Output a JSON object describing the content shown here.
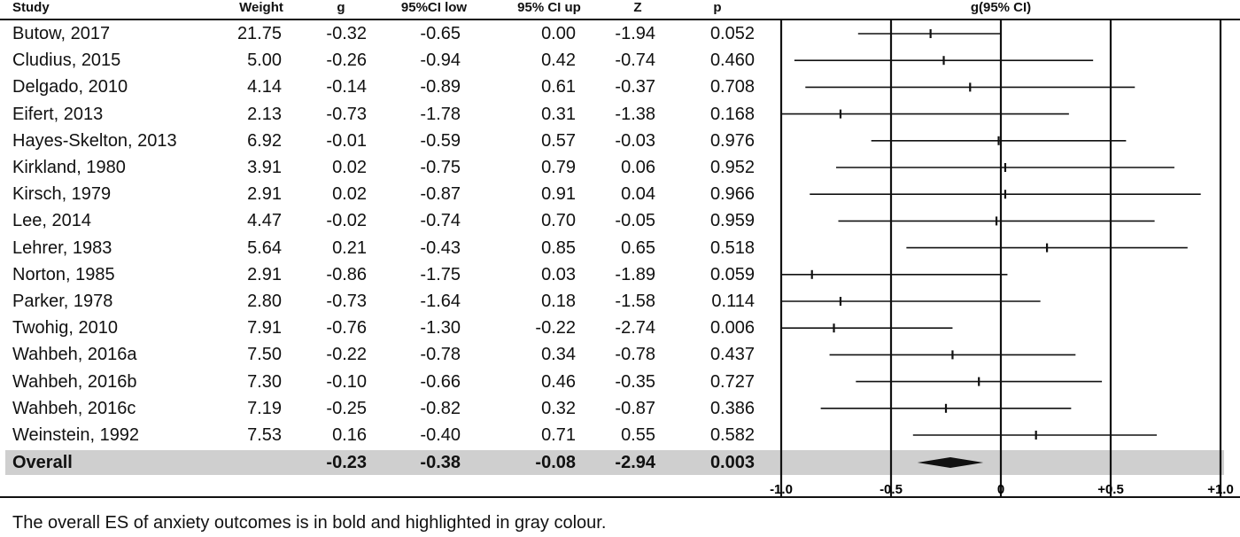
{
  "headers": {
    "study": "Study",
    "weight": "Weight",
    "g": "g",
    "ci_low": "95%CI low",
    "ci_up": "95% CI up",
    "z": "Z",
    "p": "p",
    "plot": "g(95% CI)"
  },
  "rows": [
    {
      "study": "Butow, 2017",
      "weight": "21.75",
      "g": "-0.32",
      "ci_low": "-0.65",
      "ci_up": "0.00",
      "z": "-1.94",
      "p": "0.052"
    },
    {
      "study": "Cludius, 2015",
      "weight": "5.00",
      "g": "-0.26",
      "ci_low": "-0.94",
      "ci_up": "0.42",
      "z": "-0.74",
      "p": "0.460"
    },
    {
      "study": "Delgado, 2010",
      "weight": "4.14",
      "g": "-0.14",
      "ci_low": "-0.89",
      "ci_up": "0.61",
      "z": "-0.37",
      "p": "0.708"
    },
    {
      "study": "Eifert, 2013",
      "weight": "2.13",
      "g": "-0.73",
      "ci_low": "-1.78",
      "ci_up": "0.31",
      "z": "-1.38",
      "p": "0.168"
    },
    {
      "study": "Hayes-Skelton, 2013",
      "weight": "6.92",
      "g": "-0.01",
      "ci_low": "-0.59",
      "ci_up": "0.57",
      "z": "-0.03",
      "p": "0.976"
    },
    {
      "study": "Kirkland, 1980",
      "weight": "3.91",
      "g": "0.02",
      "ci_low": "-0.75",
      "ci_up": "0.79",
      "z": "0.06",
      "p": "0.952"
    },
    {
      "study": "Kirsch, 1979",
      "weight": "2.91",
      "g": "0.02",
      "ci_low": "-0.87",
      "ci_up": "0.91",
      "z": "0.04",
      "p": "0.966"
    },
    {
      "study": "Lee, 2014",
      "weight": "4.47",
      "g": "-0.02",
      "ci_low": "-0.74",
      "ci_up": "0.70",
      "z": "-0.05",
      "p": "0.959"
    },
    {
      "study": "Lehrer, 1983",
      "weight": "5.64",
      "g": "0.21",
      "ci_low": "-0.43",
      "ci_up": "0.85",
      "z": "0.65",
      "p": "0.518"
    },
    {
      "study": "Norton, 1985",
      "weight": "2.91",
      "g": "-0.86",
      "ci_low": "-1.75",
      "ci_up": "0.03",
      "z": "-1.89",
      "p": "0.059"
    },
    {
      "study": "Parker, 1978",
      "weight": "2.80",
      "g": "-0.73",
      "ci_low": "-1.64",
      "ci_up": "0.18",
      "z": "-1.58",
      "p": "0.114"
    },
    {
      "study": "Twohig, 2010",
      "weight": "7.91",
      "g": "-0.76",
      "ci_low": "-1.30",
      "ci_up": "-0.22",
      "z": "-2.74",
      "p": "0.006"
    },
    {
      "study": "Wahbeh, 2016a",
      "weight": "7.50",
      "g": "-0.22",
      "ci_low": "-0.78",
      "ci_up": "0.34",
      "z": "-0.78",
      "p": "0.437"
    },
    {
      "study": "Wahbeh, 2016b",
      "weight": "7.30",
      "g": "-0.10",
      "ci_low": "-0.66",
      "ci_up": "0.46",
      "z": "-0.35",
      "p": "0.727"
    },
    {
      "study": "Wahbeh, 2016c",
      "weight": "7.19",
      "g": "-0.25",
      "ci_low": "-0.82",
      "ci_up": "0.32",
      "z": "-0.87",
      "p": "0.386"
    },
    {
      "study": "Weinstein, 1992",
      "weight": "7.53",
      "g": "0.16",
      "ci_low": "-0.40",
      "ci_up": "0.71",
      "z": "0.55",
      "p": "0.582"
    }
  ],
  "overall": {
    "study": "Overall",
    "weight": "",
    "g": "-0.23",
    "ci_low": "-0.38",
    "ci_up": "-0.08",
    "z": "-2.94",
    "p": "0.003"
  },
  "caption": "The overall ES of anxiety outcomes is in bold and highlighted in gray colour.",
  "colors": {
    "overall_band": "#cfcfcf",
    "ink": "#111111"
  },
  "chart_data": {
    "type": "forest",
    "title": "g(95% CI)",
    "xlim": [
      -1.0,
      1.0
    ],
    "x_ticks": [
      -1.0,
      -0.5,
      0,
      0.5,
      1.0
    ],
    "x_tick_labels": [
      "-1.0",
      "-0.5",
      "0",
      "+0.5",
      "+1.0"
    ],
    "reference_lines": [
      -1.0,
      -0.5,
      0,
      0.5,
      1.0
    ],
    "points": [
      {
        "label": "Butow, 2017",
        "g": -0.32,
        "low": -0.65,
        "up": 0.0
      },
      {
        "label": "Cludius, 2015",
        "g": -0.26,
        "low": -0.94,
        "up": 0.42
      },
      {
        "label": "Delgado, 2010",
        "g": -0.14,
        "low": -0.89,
        "up": 0.61
      },
      {
        "label": "Eifert, 2013",
        "g": -0.73,
        "low": -1.78,
        "up": 0.31
      },
      {
        "label": "Hayes-Skelton, 2013",
        "g": -0.01,
        "low": -0.59,
        "up": 0.57
      },
      {
        "label": "Kirkland, 1980",
        "g": 0.02,
        "low": -0.75,
        "up": 0.79
      },
      {
        "label": "Kirsch, 1979",
        "g": 0.02,
        "low": -0.87,
        "up": 0.91
      },
      {
        "label": "Lee, 2014",
        "g": -0.02,
        "low": -0.74,
        "up": 0.7
      },
      {
        "label": "Lehrer, 1983",
        "g": 0.21,
        "low": -0.43,
        "up": 0.85
      },
      {
        "label": "Norton, 1985",
        "g": -0.86,
        "low": -1.75,
        "up": 0.03
      },
      {
        "label": "Parker, 1978",
        "g": -0.73,
        "low": -1.64,
        "up": 0.18
      },
      {
        "label": "Twohig, 2010",
        "g": -0.76,
        "low": -1.3,
        "up": -0.22
      },
      {
        "label": "Wahbeh, 2016a",
        "g": -0.22,
        "low": -0.78,
        "up": 0.34
      },
      {
        "label": "Wahbeh, 2016b",
        "g": -0.1,
        "low": -0.66,
        "up": 0.46
      },
      {
        "label": "Wahbeh, 2016c",
        "g": -0.25,
        "low": -0.82,
        "up": 0.32
      },
      {
        "label": "Weinstein, 1992",
        "g": 0.16,
        "low": -0.4,
        "up": 0.71
      }
    ],
    "summary": {
      "label": "Overall",
      "g": -0.23,
      "low": -0.38,
      "up": -0.08
    }
  }
}
